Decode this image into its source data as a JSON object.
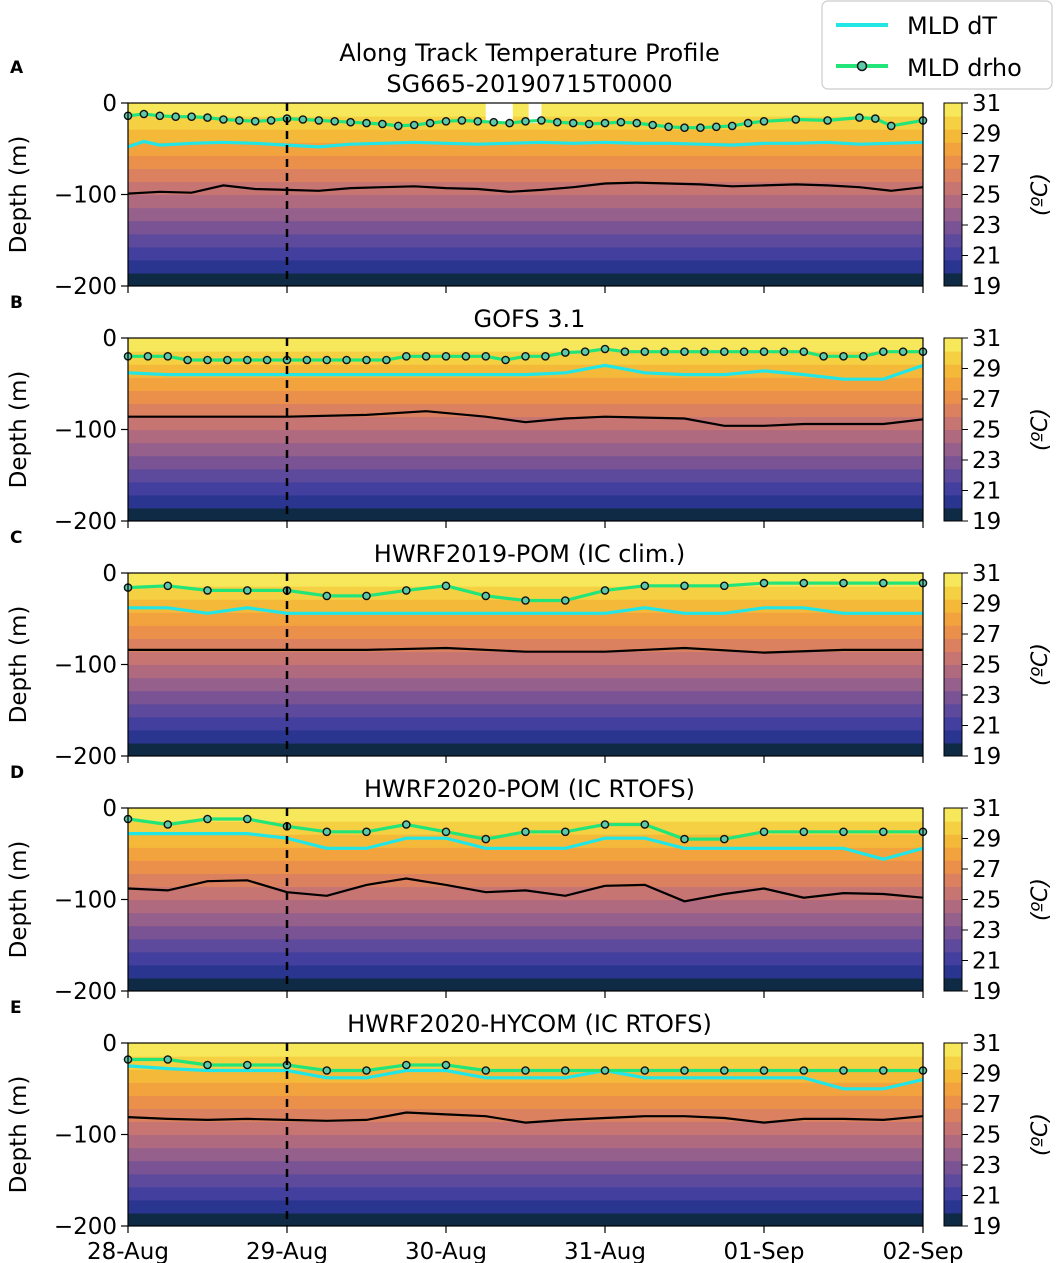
{
  "legend": {
    "entries": [
      {
        "label": "MLD dT",
        "color": "#22e6e6",
        "marker": false
      },
      {
        "label": "MLD drho",
        "color": "#22e57a",
        "marker": true
      }
    ]
  },
  "colormap": [
    "#0f2a45",
    "#2a3590",
    "#423f9e",
    "#5e4a9c",
    "#7a5394",
    "#95608c",
    "#b06a80",
    "#c77572",
    "#dc8160",
    "#ea904a",
    "#f2a33e",
    "#f5b93a",
    "#f6d043",
    "#f6e85a"
  ],
  "chart_data": [
    {
      "type": "heatmap",
      "panel_letter": "A",
      "title_lines": [
        "Along Track Temperature Profile",
        "SG665-20190715T0000"
      ],
      "ylabel": "Depth (m)",
      "ylim": [
        -200,
        0
      ],
      "yticks": [
        "0",
        "−100",
        "−200"
      ],
      "xlim_days": [
        0,
        5
      ],
      "xticks": [
        "28-Aug",
        "29-Aug",
        "30-Aug",
        "31-Aug",
        "01-Sep",
        "02-Sep"
      ],
      "show_xticklabels": false,
      "vline_day": 1,
      "colorbar": {
        "label": "(ºC)",
        "ticks": [
          "31",
          "29",
          "27",
          "25",
          "23",
          "21",
          "19"
        ],
        "range": [
          19,
          31
        ]
      },
      "mld_dT": {
        "x": [
          0,
          0.1,
          0.2,
          0.4,
          0.6,
          0.8,
          1.0,
          1.2,
          1.4,
          1.6,
          1.8,
          2.0,
          2.2,
          2.4,
          2.6,
          2.8,
          3.0,
          3.2,
          3.4,
          3.6,
          3.8,
          4.0,
          4.2,
          4.4,
          4.6,
          4.8,
          5.0
        ],
        "y": [
          -48,
          -42,
          -46,
          -44,
          -43,
          -44,
          -46,
          -48,
          -45,
          -44,
          -43,
          -44,
          -45,
          -44,
          -43,
          -44,
          -43,
          -44,
          -44,
          -45,
          -46,
          -44,
          -44,
          -43,
          -45,
          -44,
          -43
        ]
      },
      "mld_drho": {
        "x": [
          0,
          0.1,
          0.2,
          0.3,
          0.4,
          0.5,
          0.6,
          0.7,
          0.8,
          0.9,
          1.0,
          1.1,
          1.2,
          1.3,
          1.4,
          1.5,
          1.6,
          1.7,
          1.8,
          1.9,
          2.0,
          2.1,
          2.2,
          2.3,
          2.4,
          2.5,
          2.6,
          2.7,
          2.8,
          2.9,
          3.0,
          3.1,
          3.2,
          3.3,
          3.4,
          3.5,
          3.6,
          3.7,
          3.8,
          3.9,
          4.0,
          4.2,
          4.4,
          4.6,
          4.7,
          4.8,
          5.0
        ],
        "y": [
          -14,
          -12,
          -14,
          -15,
          -15,
          -16,
          -18,
          -19,
          -20,
          -19,
          -17,
          -18,
          -19,
          -20,
          -21,
          -22,
          -23,
          -25,
          -24,
          -22,
          -20,
          -19,
          -20,
          -21,
          -22,
          -20,
          -19,
          -21,
          -22,
          -23,
          -22,
          -21,
          -22,
          -24,
          -26,
          -27,
          -27,
          -26,
          -25,
          -22,
          -20,
          -18,
          -19,
          -16,
          -17,
          -25,
          -19
        ]
      },
      "mld_drho_markers": [
        0,
        0.1,
        0.2,
        0.3,
        0.4,
        0.5,
        0.6,
        0.7,
        0.8,
        0.9,
        1.0,
        1.1,
        1.2,
        1.3,
        1.4,
        1.5,
        1.6,
        1.7,
        1.8,
        1.9,
        2.0,
        2.1,
        2.2,
        2.3,
        2.4,
        2.5,
        2.6,
        2.7,
        2.8,
        2.9,
        3.0,
        3.1,
        3.2,
        3.3,
        3.4,
        3.5,
        3.6,
        3.7,
        3.8,
        3.9,
        4.0,
        4.2,
        4.4,
        4.6,
        4.7,
        4.8,
        5.0
      ],
      "iso26": {
        "x": [
          0,
          0.2,
          0.4,
          0.6,
          0.8,
          1.0,
          1.2,
          1.4,
          1.6,
          1.8,
          2.0,
          2.2,
          2.4,
          2.6,
          2.8,
          3.0,
          3.2,
          3.4,
          3.6,
          3.8,
          4.0,
          4.2,
          4.4,
          4.6,
          4.8,
          5.0
        ],
        "y": [
          -99,
          -97,
          -98,
          -90,
          -94,
          -95,
          -96,
          -93,
          -92,
          -91,
          -93,
          -94,
          -97,
          -95,
          -92,
          -88,
          -87,
          -88,
          -89,
          -91,
          -90,
          -89,
          -90,
          -92,
          -96,
          -92
        ]
      },
      "surface_gaps": [
        [
          2.25,
          2.42
        ],
        [
          2.52,
          2.6
        ]
      ]
    },
    {
      "type": "heatmap",
      "panel_letter": "B",
      "title_lines": [
        "GOFS 3.1"
      ],
      "ylabel": "Depth (m)",
      "ylim": [
        -200,
        0
      ],
      "yticks": [
        "0",
        "−100",
        "−200"
      ],
      "xlim_days": [
        0,
        5
      ],
      "xticks": [
        "28-Aug",
        "29-Aug",
        "30-Aug",
        "31-Aug",
        "01-Sep",
        "02-Sep"
      ],
      "show_xticklabels": false,
      "vline_day": 1,
      "colorbar": {
        "label": "(ºC)",
        "ticks": [
          "31",
          "29",
          "27",
          "25",
          "23",
          "21",
          "19"
        ],
        "range": [
          19,
          31
        ]
      },
      "mld_dT": {
        "x": [
          0,
          0.25,
          0.5,
          0.75,
          1.0,
          1.5,
          2.0,
          2.5,
          2.75,
          3.0,
          3.25,
          3.5,
          3.75,
          4.0,
          4.25,
          4.5,
          4.75,
          5.0
        ],
        "y": [
          -38,
          -40,
          -40,
          -40,
          -40,
          -40,
          -40,
          -40,
          -38,
          -30,
          -38,
          -40,
          -40,
          -36,
          -40,
          -45,
          -45,
          -30
        ]
      },
      "mld_drho": {
        "x": [
          0,
          0.125,
          0.25,
          0.375,
          0.5,
          0.625,
          0.75,
          0.875,
          1.0,
          1.125,
          1.25,
          1.375,
          1.5,
          1.625,
          1.75,
          1.875,
          2.0,
          2.125,
          2.25,
          2.375,
          2.5,
          2.625,
          2.75,
          2.875,
          3.0,
          3.125,
          3.25,
          3.375,
          3.5,
          3.625,
          3.75,
          3.875,
          4.0,
          4.125,
          4.25,
          4.375,
          4.5,
          4.625,
          4.75,
          4.875,
          5.0
        ],
        "y": [
          -20,
          -20,
          -20,
          -24,
          -24,
          -24,
          -24,
          -24,
          -24,
          -24,
          -24,
          -24,
          -24,
          -24,
          -20,
          -20,
          -20,
          -20,
          -20,
          -24,
          -20,
          -20,
          -16,
          -15,
          -12,
          -15,
          -15,
          -15,
          -15,
          -15,
          -15,
          -15,
          -15,
          -15,
          -15,
          -20,
          -20,
          -20,
          -15,
          -15,
          -15
        ]
      },
      "mld_drho_markers": [
        0,
        0.125,
        0.25,
        0.375,
        0.5,
        0.625,
        0.75,
        0.875,
        1.0,
        1.125,
        1.25,
        1.375,
        1.5,
        1.625,
        1.75,
        1.875,
        2.0,
        2.125,
        2.25,
        2.375,
        2.5,
        2.625,
        2.75,
        2.875,
        3.0,
        3.125,
        3.25,
        3.375,
        3.5,
        3.625,
        3.75,
        3.875,
        4.0,
        4.125,
        4.25,
        4.375,
        4.5,
        4.625,
        4.75,
        4.875,
        5.0
      ],
      "iso26": {
        "x": [
          0,
          0.5,
          1.0,
          1.5,
          1.875,
          2.25,
          2.5,
          2.75,
          3.0,
          3.5,
          3.75,
          4.0,
          4.25,
          4.5,
          4.75,
          5.0
        ],
        "y": [
          -86,
          -86,
          -86,
          -84,
          -80,
          -86,
          -92,
          -88,
          -86,
          -88,
          -96,
          -96,
          -94,
          -94,
          -94,
          -89
        ]
      },
      "surface_gaps": []
    },
    {
      "type": "heatmap",
      "panel_letter": "C",
      "title_lines": [
        "HWRF2019-POM (IC clim.)"
      ],
      "ylabel": "Depth (m)",
      "ylim": [
        -200,
        0
      ],
      "yticks": [
        "0",
        "−100",
        "−200"
      ],
      "xlim_days": [
        0,
        5
      ],
      "xticks": [
        "28-Aug",
        "29-Aug",
        "30-Aug",
        "31-Aug",
        "01-Sep",
        "02-Sep"
      ],
      "show_xticklabels": false,
      "vline_day": 1,
      "colorbar": {
        "label": "(ºC)",
        "ticks": [
          "31",
          "29",
          "27",
          "25",
          "23",
          "21",
          "19"
        ],
        "range": [
          19,
          31
        ]
      },
      "mld_dT": {
        "x": [
          0,
          0.25,
          0.5,
          0.75,
          1.0,
          1.25,
          1.5,
          1.75,
          2.0,
          2.25,
          2.5,
          2.75,
          3.0,
          3.25,
          3.5,
          3.75,
          4.0,
          4.25,
          4.5,
          4.75,
          5.0
        ],
        "y": [
          -38,
          -38,
          -44,
          -38,
          -44,
          -44,
          -44,
          -44,
          -44,
          -44,
          -44,
          -44,
          -44,
          -38,
          -44,
          -44,
          -38,
          -38,
          -44,
          -44,
          -44
        ]
      },
      "mld_drho": {
        "x": [
          0,
          0.25,
          0.5,
          0.75,
          1.0,
          1.25,
          1.5,
          1.75,
          2.0,
          2.25,
          2.5,
          2.75,
          3.0,
          3.25,
          3.5,
          3.75,
          4.0,
          4.25,
          4.5,
          4.75,
          5.0
        ],
        "y": [
          -16,
          -14,
          -19,
          -19,
          -19,
          -25,
          -25,
          -19,
          -14,
          -25,
          -30,
          -30,
          -19,
          -14,
          -14,
          -14,
          -11,
          -11,
          -11,
          -11,
          -11
        ]
      },
      "mld_drho_markers": [
        0,
        0.25,
        0.5,
        0.75,
        1.0,
        1.25,
        1.5,
        1.75,
        2.0,
        2.25,
        2.5,
        2.75,
        3.0,
        3.25,
        3.5,
        3.75,
        4.0,
        4.25,
        4.5,
        4.75,
        5.0
      ],
      "iso26": {
        "x": [
          0,
          1.0,
          1.5,
          2.0,
          2.5,
          3.0,
          3.5,
          4.0,
          4.5,
          5.0
        ],
        "y": [
          -84,
          -84,
          -84,
          -82,
          -86,
          -86,
          -82,
          -87,
          -84,
          -84
        ]
      },
      "surface_gaps": []
    },
    {
      "type": "heatmap",
      "panel_letter": "D",
      "title_lines": [
        "HWRF2020-POM (IC RTOFS)"
      ],
      "ylabel": "Depth (m)",
      "ylim": [
        -200,
        0
      ],
      "yticks": [
        "0",
        "−100",
        "−200"
      ],
      "xlim_days": [
        0,
        5
      ],
      "xticks": [
        "28-Aug",
        "29-Aug",
        "30-Aug",
        "31-Aug",
        "01-Sep",
        "02-Sep"
      ],
      "show_xticklabels": false,
      "vline_day": 1,
      "colorbar": {
        "label": "(ºC)",
        "ticks": [
          "31",
          "29",
          "27",
          "25",
          "23",
          "21",
          "19"
        ],
        "range": [
          19,
          31
        ]
      },
      "mld_dT": {
        "x": [
          0,
          0.25,
          0.5,
          0.75,
          1.0,
          1.25,
          1.5,
          1.75,
          2.0,
          2.25,
          2.5,
          2.75,
          3.0,
          3.25,
          3.5,
          3.75,
          4.0,
          4.25,
          4.5,
          4.75,
          5.0
        ],
        "y": [
          -28,
          -28,
          -28,
          -28,
          -33,
          -44,
          -44,
          -33,
          -33,
          -44,
          -44,
          -44,
          -33,
          -33,
          -44,
          -44,
          -44,
          -44,
          -44,
          -56,
          -44
        ]
      },
      "mld_drho": {
        "x": [
          0,
          0.25,
          0.5,
          0.75,
          1.0,
          1.25,
          1.5,
          1.75,
          2.0,
          2.25,
          2.5,
          2.75,
          3.0,
          3.25,
          3.5,
          3.75,
          4.0,
          4.25,
          4.5,
          4.75,
          5.0
        ],
        "y": [
          -12,
          -18,
          -12,
          -12,
          -20,
          -26,
          -26,
          -18,
          -26,
          -34,
          -26,
          -26,
          -18,
          -18,
          -34,
          -34,
          -26,
          -26,
          -26,
          -26,
          -26
        ]
      },
      "mld_drho_markers": [
        0,
        0.25,
        0.5,
        0.75,
        1.0,
        1.25,
        1.5,
        1.75,
        2.0,
        2.25,
        2.5,
        2.75,
        3.0,
        3.25,
        3.5,
        3.75,
        4.0,
        4.25,
        4.5,
        4.75,
        5.0
      ],
      "iso26": {
        "x": [
          0,
          0.25,
          0.5,
          0.75,
          1.0,
          1.25,
          1.5,
          1.75,
          2.0,
          2.25,
          2.5,
          2.75,
          3.0,
          3.25,
          3.5,
          3.75,
          4.0,
          4.25,
          4.5,
          4.75,
          5.0
        ],
        "y": [
          -88,
          -90,
          -80,
          -79,
          -92,
          -96,
          -84,
          -77,
          -84,
          -92,
          -90,
          -96,
          -85,
          -84,
          -102,
          -94,
          -88,
          -98,
          -93,
          -94,
          -98
        ]
      },
      "surface_gaps": []
    },
    {
      "type": "heatmap",
      "panel_letter": "E",
      "title_lines": [
        "HWRF2020-HYCOM (IC RTOFS)"
      ],
      "ylabel": "Depth (m)",
      "ylim": [
        -200,
        0
      ],
      "yticks": [
        "0",
        "−100",
        "−200"
      ],
      "xlim_days": [
        0,
        5
      ],
      "xticks": [
        "28-Aug",
        "29-Aug",
        "30-Aug",
        "31-Aug",
        "01-Sep",
        "02-Sep"
      ],
      "show_xticklabels": true,
      "vline_day": 1,
      "colorbar": {
        "label": "(ºC)",
        "ticks": [
          "31",
          "29",
          "27",
          "25",
          "23",
          "21",
          "19"
        ],
        "range": [
          19,
          31
        ]
      },
      "mld_dT": {
        "x": [
          0,
          0.25,
          0.5,
          0.75,
          1.0,
          1.25,
          1.5,
          1.75,
          2.0,
          2.25,
          2.5,
          2.75,
          3.0,
          3.25,
          3.5,
          3.75,
          4.0,
          4.25,
          4.5,
          4.75,
          5.0
        ],
        "y": [
          -25,
          -28,
          -30,
          -30,
          -30,
          -38,
          -38,
          -30,
          -30,
          -38,
          -38,
          -38,
          -30,
          -38,
          -38,
          -38,
          -38,
          -38,
          -50,
          -50,
          -40
        ]
      },
      "mld_drho": {
        "x": [
          0,
          0.25,
          0.5,
          0.75,
          1.0,
          1.25,
          1.5,
          1.75,
          2.0,
          2.25,
          2.5,
          2.75,
          3.0,
          3.25,
          3.5,
          3.75,
          4.0,
          4.25,
          4.5,
          4.75,
          5.0
        ],
        "y": [
          -18,
          -18,
          -24,
          -24,
          -24,
          -30,
          -30,
          -24,
          -24,
          -30,
          -30,
          -30,
          -30,
          -30,
          -30,
          -30,
          -30,
          -30,
          -30,
          -30,
          -30
        ]
      },
      "mld_drho_markers": [
        0,
        0.25,
        0.5,
        0.75,
        1.0,
        1.25,
        1.5,
        1.75,
        2.0,
        2.25,
        2.5,
        2.75,
        3.0,
        3.25,
        3.5,
        3.75,
        4.0,
        4.25,
        4.5,
        4.75,
        5.0
      ],
      "iso26": {
        "x": [
          0,
          0.25,
          0.5,
          0.75,
          1.0,
          1.25,
          1.5,
          1.75,
          2.0,
          2.25,
          2.5,
          2.75,
          3.0,
          3.25,
          3.5,
          3.75,
          4.0,
          4.25,
          4.5,
          4.75,
          5.0
        ],
        "y": [
          -81,
          -83,
          -84,
          -83,
          -84,
          -85,
          -84,
          -76,
          -78,
          -80,
          -87,
          -84,
          -82,
          -80,
          -80,
          -82,
          -87,
          -83,
          -83,
          -84,
          -80
        ]
      },
      "surface_gaps": []
    }
  ]
}
